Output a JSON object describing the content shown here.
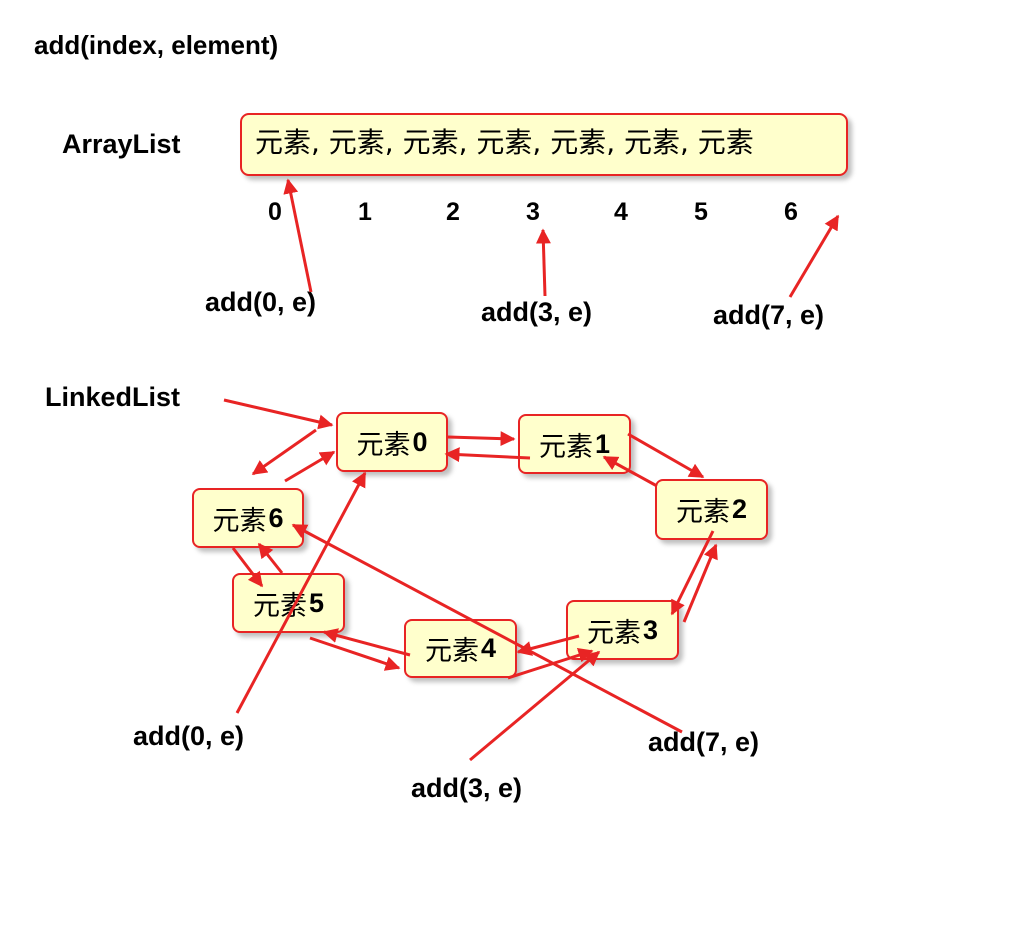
{
  "title": "add(index, element)",
  "arraylist": {
    "label": "ArrayList",
    "contents": "元素, 元素, 元素, 元素, 元素, 元素, 元素",
    "indices": [
      "0",
      "1",
      "2",
      "3",
      "4",
      "5",
      "6"
    ],
    "operations": [
      "add(0, e)",
      "add(3, e)",
      "add(7, e)"
    ]
  },
  "linkedlist": {
    "label": "LinkedList",
    "node_text": "元素",
    "nodes": [
      "0",
      "1",
      "2",
      "3",
      "4",
      "5",
      "6"
    ],
    "operations": [
      "add(0, e)",
      "add(3, e)",
      "add(7, e)"
    ]
  },
  "colors": {
    "arrow": "#e82424",
    "box_fill": "#ffffcc",
    "box_border": "#e82424"
  }
}
